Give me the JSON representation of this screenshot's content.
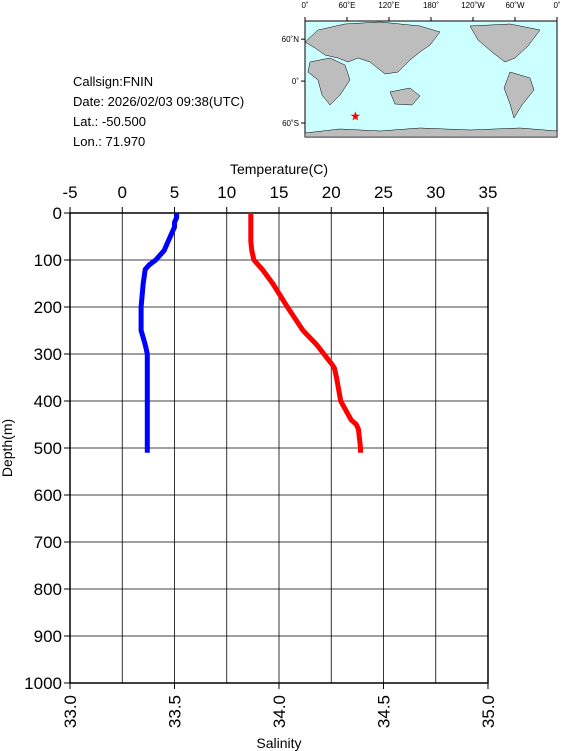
{
  "info": [
    "Callsign:FNIN",
    "Date:  2026/02/03 09:38(UTC)",
    "Lat.:  -50.500",
    "Lon.:  71.970"
  ],
  "map": {
    "xlim": [
      0,
      360
    ],
    "ylim": [
      -80,
      86
    ],
    "lon_ticks": [
      {
        "value": 0,
        "label": "0˚"
      },
      {
        "value": 60,
        "label": "60˚E"
      },
      {
        "value": 120,
        "label": "120˚E"
      },
      {
        "value": 180,
        "label": "180˚"
      },
      {
        "value": 240,
        "label": "120˚W"
      },
      {
        "value": 300,
        "label": "60˚W"
      },
      {
        "value": 360,
        "label": "0˚"
      }
    ],
    "lat_ticks": [
      {
        "value": 60,
        "label": "60˚N"
      },
      {
        "value": 0,
        "label": "0˚"
      },
      {
        "value": -60,
        "label": "60˚S"
      }
    ],
    "station": {
      "lon": 71.97,
      "lat": -50.5,
      "color": "#ff0000"
    }
  },
  "chart_data": {
    "type": "line",
    "xlabel_top": "Temperature(C)",
    "xlabel": "Salinity",
    "ylabel": "Depth(m)",
    "y": [
      0,
      10,
      20,
      30,
      40,
      60,
      80,
      100,
      110,
      120,
      150,
      200,
      250,
      280,
      300,
      320,
      330,
      350,
      400,
      420,
      440,
      450,
      460,
      480,
      500,
      510
    ],
    "ylim": [
      1000,
      0
    ],
    "yticks": [
      0,
      100,
      200,
      300,
      400,
      500,
      600,
      700,
      800,
      900,
      1000
    ],
    "x2lim": [
      -5,
      35
    ],
    "x2ticks": [
      -5,
      0,
      5,
      10,
      15,
      20,
      25,
      30,
      35
    ],
    "xlim": [
      33.0,
      35.0
    ],
    "xticks": [
      {
        "value": 33.0,
        "label": "33.0"
      },
      {
        "value": 33.5,
        "label": "33.5"
      },
      {
        "value": 34.0,
        "label": "34.0"
      },
      {
        "value": 34.5,
        "label": "34.5"
      },
      {
        "value": 35.0,
        "label": "35.0"
      }
    ],
    "grid": true,
    "series": [
      {
        "name": "Temperature",
        "axis": "x2",
        "color": "#ff0000",
        "values": [
          12.3,
          12.3,
          12.3,
          12.3,
          12.3,
          12.3,
          12.4,
          12.6,
          13.0,
          13.4,
          14.4,
          15.8,
          17.3,
          18.6,
          19.3,
          20.0,
          20.3,
          20.5,
          20.9,
          21.4,
          21.9,
          22.4,
          22.6,
          22.7,
          22.8,
          22.8
        ]
      },
      {
        "name": "Salinity",
        "axis": "x",
        "color": "#0000ff",
        "values": [
          33.51,
          33.51,
          33.5,
          33.5,
          33.49,
          33.47,
          33.45,
          33.41,
          33.38,
          33.36,
          33.35,
          33.34,
          33.34,
          33.36,
          33.37,
          33.37,
          33.37,
          33.37,
          33.37,
          33.37,
          33.37,
          33.37,
          33.37,
          33.37,
          33.37,
          33.37
        ]
      }
    ]
  }
}
